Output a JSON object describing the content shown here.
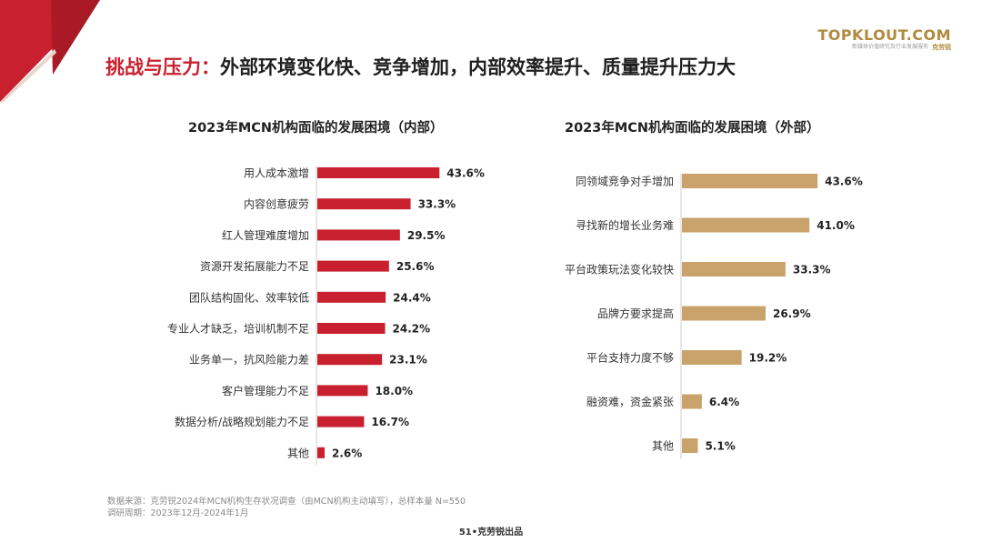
{
  "header": {
    "accent": "挑战与压力：",
    "rest": "外部环境变化快、竞争增加，内部效率提升、质量提升压力大"
  },
  "logo": {
    "brand": "TOPKLOUT.COM",
    "tagline": "新媒体价值研究及行业发展服务",
    "cn_name": "克劳锐"
  },
  "colors": {
    "accent_red": "#c8202e",
    "bar_red": "#c8202e",
    "bar_gold": "#c9a36b",
    "logo_gold": "#b08a3e"
  },
  "chart_data": [
    {
      "type": "bar",
      "orientation": "horizontal",
      "title": "2023年MCN机构面临的发展困境（内部）",
      "categories": [
        "用人成本激增",
        "内容创意疲劳",
        "红人管理难度增加",
        "资源开发拓展能力不足",
        "团队结构固化、效率较低",
        "专业人才缺乏，培训机制不足",
        "业务单一，抗风险能力差",
        "客户管理能力不足",
        "数据分析/战略规划能力不足",
        "其他"
      ],
      "values": [
        43.6,
        33.3,
        29.5,
        25.6,
        24.4,
        24.2,
        23.1,
        18.0,
        16.7,
        2.6
      ],
      "labels": [
        "43.6%",
        "33.3%",
        "29.5%",
        "25.6%",
        "24.4%",
        "24.2%",
        "23.1%",
        "18.0%",
        "16.7%",
        "2.6%"
      ],
      "unit": "%",
      "xlim": [
        0,
        50
      ]
    },
    {
      "type": "bar",
      "orientation": "horizontal",
      "title": "2023年MCN机构面临的发展困境（外部）",
      "categories": [
        "同领域竞争对手增加",
        "寻找新的增长业务难",
        "平台政策玩法变化较快",
        "品牌方要求提高",
        "平台支持力度不够",
        "融资难，资金紧张",
        "其他"
      ],
      "values": [
        43.6,
        41.0,
        33.3,
        26.9,
        19.2,
        6.4,
        5.1
      ],
      "labels": [
        "43.6%",
        "41.0%",
        "33.3%",
        "26.9%",
        "19.2%",
        "6.4%",
        "5.1%"
      ],
      "unit": "%",
      "xlim": [
        0,
        50
      ]
    }
  ],
  "footer": {
    "source": "数据来源：克劳锐2024年MCN机构生存状况调查（由MCN机构主动填写），总样本量 N=550",
    "period": "调研周期：2023年12月-2024年1月",
    "page": "51•克劳锐出品"
  }
}
